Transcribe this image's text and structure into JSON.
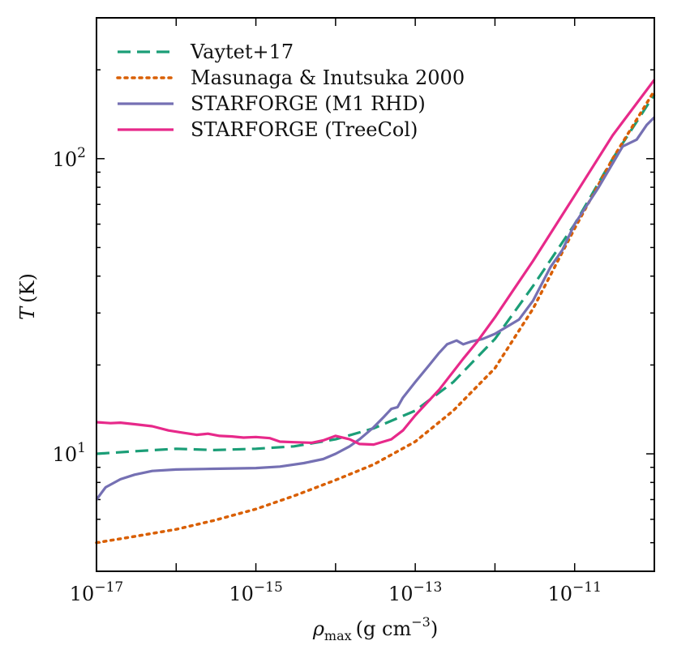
{
  "chart_data": {
    "type": "line",
    "title": "",
    "xlabel": "ρmax (g cm−3)",
    "xlabel_parts": {
      "symbol": "ρ",
      "subscript": "max",
      "unit_open": "(g cm",
      "exponent": "−3",
      "unit_close": ")"
    },
    "ylabel": "T (K)",
    "ylabel_parts": {
      "symbol": "T",
      "unit": "(K)"
    },
    "xscale": "log",
    "yscale": "log",
    "xlim": [
      1e-17,
      1e-10
    ],
    "ylim": [
      4,
      300
    ],
    "x_ticks": [
      {
        "value": 1e-17,
        "base": "10",
        "exp": "−17"
      },
      {
        "value": 1e-15,
        "base": "10",
        "exp": "−15"
      },
      {
        "value": 1e-13,
        "base": "10",
        "exp": "−13"
      },
      {
        "value": 1e-11,
        "base": "10",
        "exp": "−11"
      }
    ],
    "y_ticks": [
      {
        "value": 10,
        "base": "10",
        "exp": "1"
      },
      {
        "value": 100,
        "base": "10",
        "exp": "2"
      }
    ],
    "legend_position": "top-left",
    "series": [
      {
        "name": "Vaytet+17",
        "color": "#1b9e77",
        "style": "dashed",
        "points": [
          [
            1e-17,
            10.0
          ],
          [
            3e-17,
            10.2
          ],
          [
            1e-16,
            10.4
          ],
          [
            3e-16,
            10.3
          ],
          [
            1e-15,
            10.4
          ],
          [
            3e-15,
            10.6
          ],
          [
            1e-14,
            11.2
          ],
          [
            3e-14,
            12.2
          ],
          [
            1e-13,
            14.0
          ],
          [
            3e-13,
            17.5
          ],
          [
            1e-12,
            24.5
          ],
          [
            3e-12,
            37.0
          ],
          [
            1e-11,
            60.0
          ],
          [
            3e-11,
            100.0
          ],
          [
            1e-10,
            165.0
          ]
        ]
      },
      {
        "name": "Masunaga & Inutsuka 2000",
        "color": "#d95f02",
        "style": "dotted",
        "points": [
          [
            1e-17,
            5.0
          ],
          [
            3e-17,
            5.25
          ],
          [
            1e-16,
            5.55
          ],
          [
            3e-16,
            5.95
          ],
          [
            1e-15,
            6.5
          ],
          [
            3e-15,
            7.2
          ],
          [
            1e-14,
            8.15
          ],
          [
            3e-14,
            9.2
          ],
          [
            1e-13,
            11.0
          ],
          [
            3e-13,
            14.0
          ],
          [
            1e-12,
            19.5
          ],
          [
            3e-12,
            31.0
          ],
          [
            1e-11,
            58.0
          ],
          [
            3e-11,
            100.0
          ],
          [
            1e-10,
            170.0
          ]
        ]
      },
      {
        "name": "STARFORGE (M1 RHD)",
        "color": "#7570b3",
        "style": "solid",
        "points": [
          [
            1e-17,
            7.0
          ],
          [
            1.3e-17,
            7.7
          ],
          [
            2e-17,
            8.2
          ],
          [
            3e-17,
            8.5
          ],
          [
            5e-17,
            8.75
          ],
          [
            1e-16,
            8.85
          ],
          [
            3e-16,
            8.9
          ],
          [
            1e-15,
            8.95
          ],
          [
            2e-15,
            9.05
          ],
          [
            4e-15,
            9.3
          ],
          [
            7e-15,
            9.6
          ],
          [
            1e-14,
            10.0
          ],
          [
            1.5e-14,
            10.6
          ],
          [
            2e-14,
            11.2
          ],
          [
            3e-14,
            12.3
          ],
          [
            4e-14,
            13.3
          ],
          [
            5e-14,
            14.2
          ],
          [
            6e-14,
            14.4
          ],
          [
            7e-14,
            15.5
          ],
          [
            1e-13,
            17.5
          ],
          [
            1.5e-13,
            20.0
          ],
          [
            2e-13,
            22.0
          ],
          [
            2.5e-13,
            23.5
          ],
          [
            3.3e-13,
            24.2
          ],
          [
            4e-13,
            23.5
          ],
          [
            5e-13,
            24.0
          ],
          [
            7e-13,
            24.5
          ],
          [
            1e-12,
            25.5
          ],
          [
            2e-12,
            28.5
          ],
          [
            3e-12,
            33.0
          ],
          [
            5e-12,
            43.0
          ],
          [
            7e-12,
            49.0
          ],
          [
            1e-11,
            60.0
          ],
          [
            2e-11,
            80.0
          ],
          [
            4e-11,
            110.0
          ],
          [
            6e-11,
            116.0
          ],
          [
            8e-11,
            130.0
          ],
          [
            1e-10,
            138.0
          ]
        ]
      },
      {
        "name": "STARFORGE (TreeCol)",
        "color": "#e7298a",
        "style": "solid",
        "points": [
          [
            1e-17,
            12.8
          ],
          [
            1.5e-17,
            12.7
          ],
          [
            2e-17,
            12.75
          ],
          [
            3e-17,
            12.6
          ],
          [
            5e-17,
            12.4
          ],
          [
            8e-17,
            12.0
          ],
          [
            1.2e-16,
            11.8
          ],
          [
            1.8e-16,
            11.6
          ],
          [
            2.5e-16,
            11.7
          ],
          [
            3.5e-16,
            11.5
          ],
          [
            5e-16,
            11.45
          ],
          [
            7e-16,
            11.35
          ],
          [
            1e-15,
            11.4
          ],
          [
            1.5e-15,
            11.3
          ],
          [
            2e-15,
            11.0
          ],
          [
            3e-15,
            10.95
          ],
          [
            5e-15,
            10.9
          ],
          [
            7e-15,
            11.1
          ],
          [
            1e-14,
            11.5
          ],
          [
            1.5e-14,
            11.2
          ],
          [
            2e-14,
            10.8
          ],
          [
            3e-14,
            10.75
          ],
          [
            5e-14,
            11.2
          ],
          [
            7e-14,
            12.0
          ],
          [
            1e-13,
            13.5
          ],
          [
            2e-13,
            16.5
          ],
          [
            4e-13,
            21.0
          ],
          [
            6e-13,
            24.0
          ],
          [
            1e-12,
            29.0
          ],
          [
            3e-12,
            45.0
          ],
          [
            1e-11,
            75.0
          ],
          [
            3e-11,
            120.0
          ],
          [
            1e-10,
            185.0
          ]
        ]
      }
    ]
  }
}
